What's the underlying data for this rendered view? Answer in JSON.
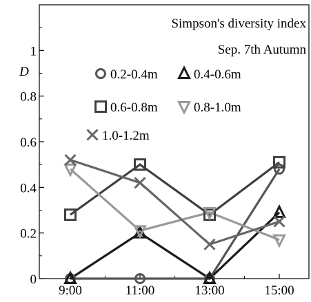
{
  "chart_data": {
    "type": "line",
    "title": "Simpson's diversity index",
    "subtitle": "Sep. 7th Autumn",
    "xlabel": "",
    "ylabel": "D",
    "categories": [
      "9:00",
      "11:00",
      "13:00",
      "15:00"
    ],
    "yticks": [
      "0",
      "0.2",
      "0.4",
      "0.6",
      "0.8",
      "1"
    ],
    "ylim": [
      0,
      1.2
    ],
    "grid": false,
    "legend_position": "top-right",
    "series": [
      {
        "name": "0.2-0.4m",
        "marker": "circle",
        "color": "#555555",
        "values": [
          0.0,
          0.0,
          0.0,
          0.48
        ]
      },
      {
        "name": "0.4-0.6m",
        "marker": "triangle",
        "color": "#1a1a1a",
        "values": [
          0.0,
          0.2,
          0.0,
          0.29
        ]
      },
      {
        "name": "0.6-0.8m",
        "marker": "square",
        "color": "#404040",
        "values": [
          0.28,
          0.5,
          0.28,
          0.51
        ]
      },
      {
        "name": "0.8-1.0m",
        "marker": "triangle-down",
        "color": "#999999",
        "values": [
          0.48,
          0.21,
          0.29,
          0.17
        ]
      },
      {
        "name": "1.0-1.2m",
        "marker": "x",
        "color": "#666666",
        "values": [
          0.52,
          0.42,
          0.15,
          0.25
        ]
      }
    ]
  }
}
